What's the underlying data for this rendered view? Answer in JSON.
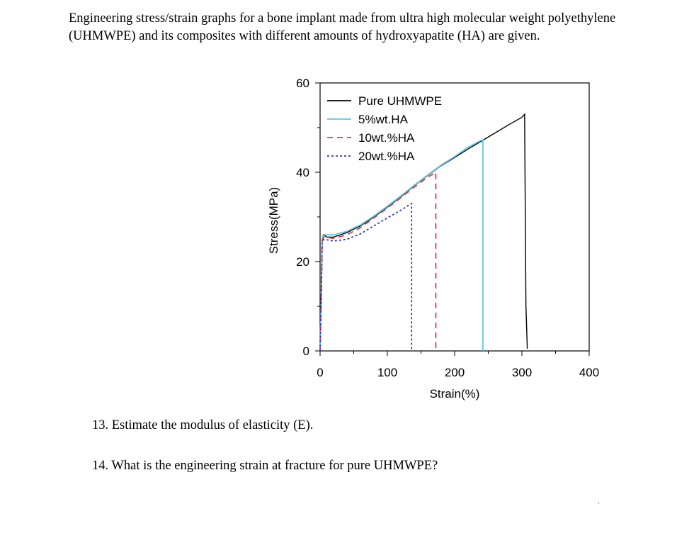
{
  "intro_text": "Engineering stress/strain graphs for a bone implant made from ultra high molecular weight polyethylene (UHMWPE) and its composites with different amounts of hydroxyapatite (HA) are given.",
  "questions": [
    "13. Estimate the modulus of elasticity (E).",
    "14. What is the engineering strain at fracture for pure UHMWPE?"
  ],
  "chart_data": {
    "type": "line",
    "title": "",
    "xlabel": "Strain(%)",
    "ylabel": "Stress(MPa)",
    "xlim": [
      0,
      400
    ],
    "ylim": [
      0,
      60
    ],
    "x_ticks": [
      0,
      100,
      200,
      300,
      400
    ],
    "y_ticks": [
      0,
      20,
      40,
      60
    ],
    "legend_position": "top-left",
    "grid": false,
    "series": [
      {
        "name": "Pure UHMWPE",
        "color": "#000000",
        "dash": "solid",
        "points": [
          [
            0,
            0
          ],
          [
            2,
            14
          ],
          [
            3,
            25
          ],
          [
            5,
            26
          ],
          [
            10,
            25.5
          ],
          [
            20,
            25.5
          ],
          [
            40,
            26.5
          ],
          [
            60,
            28
          ],
          [
            80,
            30
          ],
          [
            100,
            32.2
          ],
          [
            120,
            34.5
          ],
          [
            140,
            37
          ],
          [
            160,
            39.3
          ],
          [
            180,
            41.5
          ],
          [
            200,
            43.3
          ],
          [
            220,
            45.2
          ],
          [
            240,
            47
          ],
          [
            260,
            48.8
          ],
          [
            280,
            50.6
          ],
          [
            300,
            52.3
          ],
          [
            304,
            53
          ],
          [
            305,
            30
          ],
          [
            306,
            10
          ],
          [
            308,
            0.5
          ]
        ]
      },
      {
        "name": "5%wt.HA",
        "color": "#5bc8e8",
        "dash": "solid",
        "points": [
          [
            0,
            0
          ],
          [
            2,
            14
          ],
          [
            3,
            25
          ],
          [
            6,
            26
          ],
          [
            20,
            26
          ],
          [
            40,
            26.8
          ],
          [
            60,
            28.2
          ],
          [
            80,
            30.2
          ],
          [
            100,
            32.4
          ],
          [
            120,
            34.7
          ],
          [
            140,
            37.1
          ],
          [
            160,
            39.4
          ],
          [
            180,
            41.6
          ],
          [
            200,
            43.5
          ],
          [
            220,
            45.6
          ],
          [
            240,
            47.2
          ],
          [
            242,
            47.2
          ],
          [
            242,
            0
          ]
        ]
      },
      {
        "name": "10wt.%HA",
        "color": "#e03a3a",
        "dash": "8,6",
        "points": [
          [
            0,
            0
          ],
          [
            2,
            14
          ],
          [
            3,
            24.8
          ],
          [
            6,
            25.5
          ],
          [
            20,
            25.2
          ],
          [
            40,
            26
          ],
          [
            60,
            27.6
          ],
          [
            80,
            29.8
          ],
          [
            100,
            32
          ],
          [
            120,
            34.3
          ],
          [
            140,
            36.7
          ],
          [
            160,
            38.9
          ],
          [
            172,
            40
          ],
          [
            172,
            0
          ]
        ]
      },
      {
        "name": "20wt.%HA",
        "color": "#2b3fbf",
        "dash": "3,3",
        "points": [
          [
            0,
            0
          ],
          [
            2,
            14
          ],
          [
            3,
            24.5
          ],
          [
            6,
            25
          ],
          [
            20,
            24.6
          ],
          [
            40,
            25
          ],
          [
            60,
            26.2
          ],
          [
            80,
            28
          ],
          [
            100,
            29.8
          ],
          [
            120,
            31.5
          ],
          [
            130,
            32.5
          ],
          [
            136,
            33
          ],
          [
            136,
            0
          ]
        ]
      }
    ]
  }
}
